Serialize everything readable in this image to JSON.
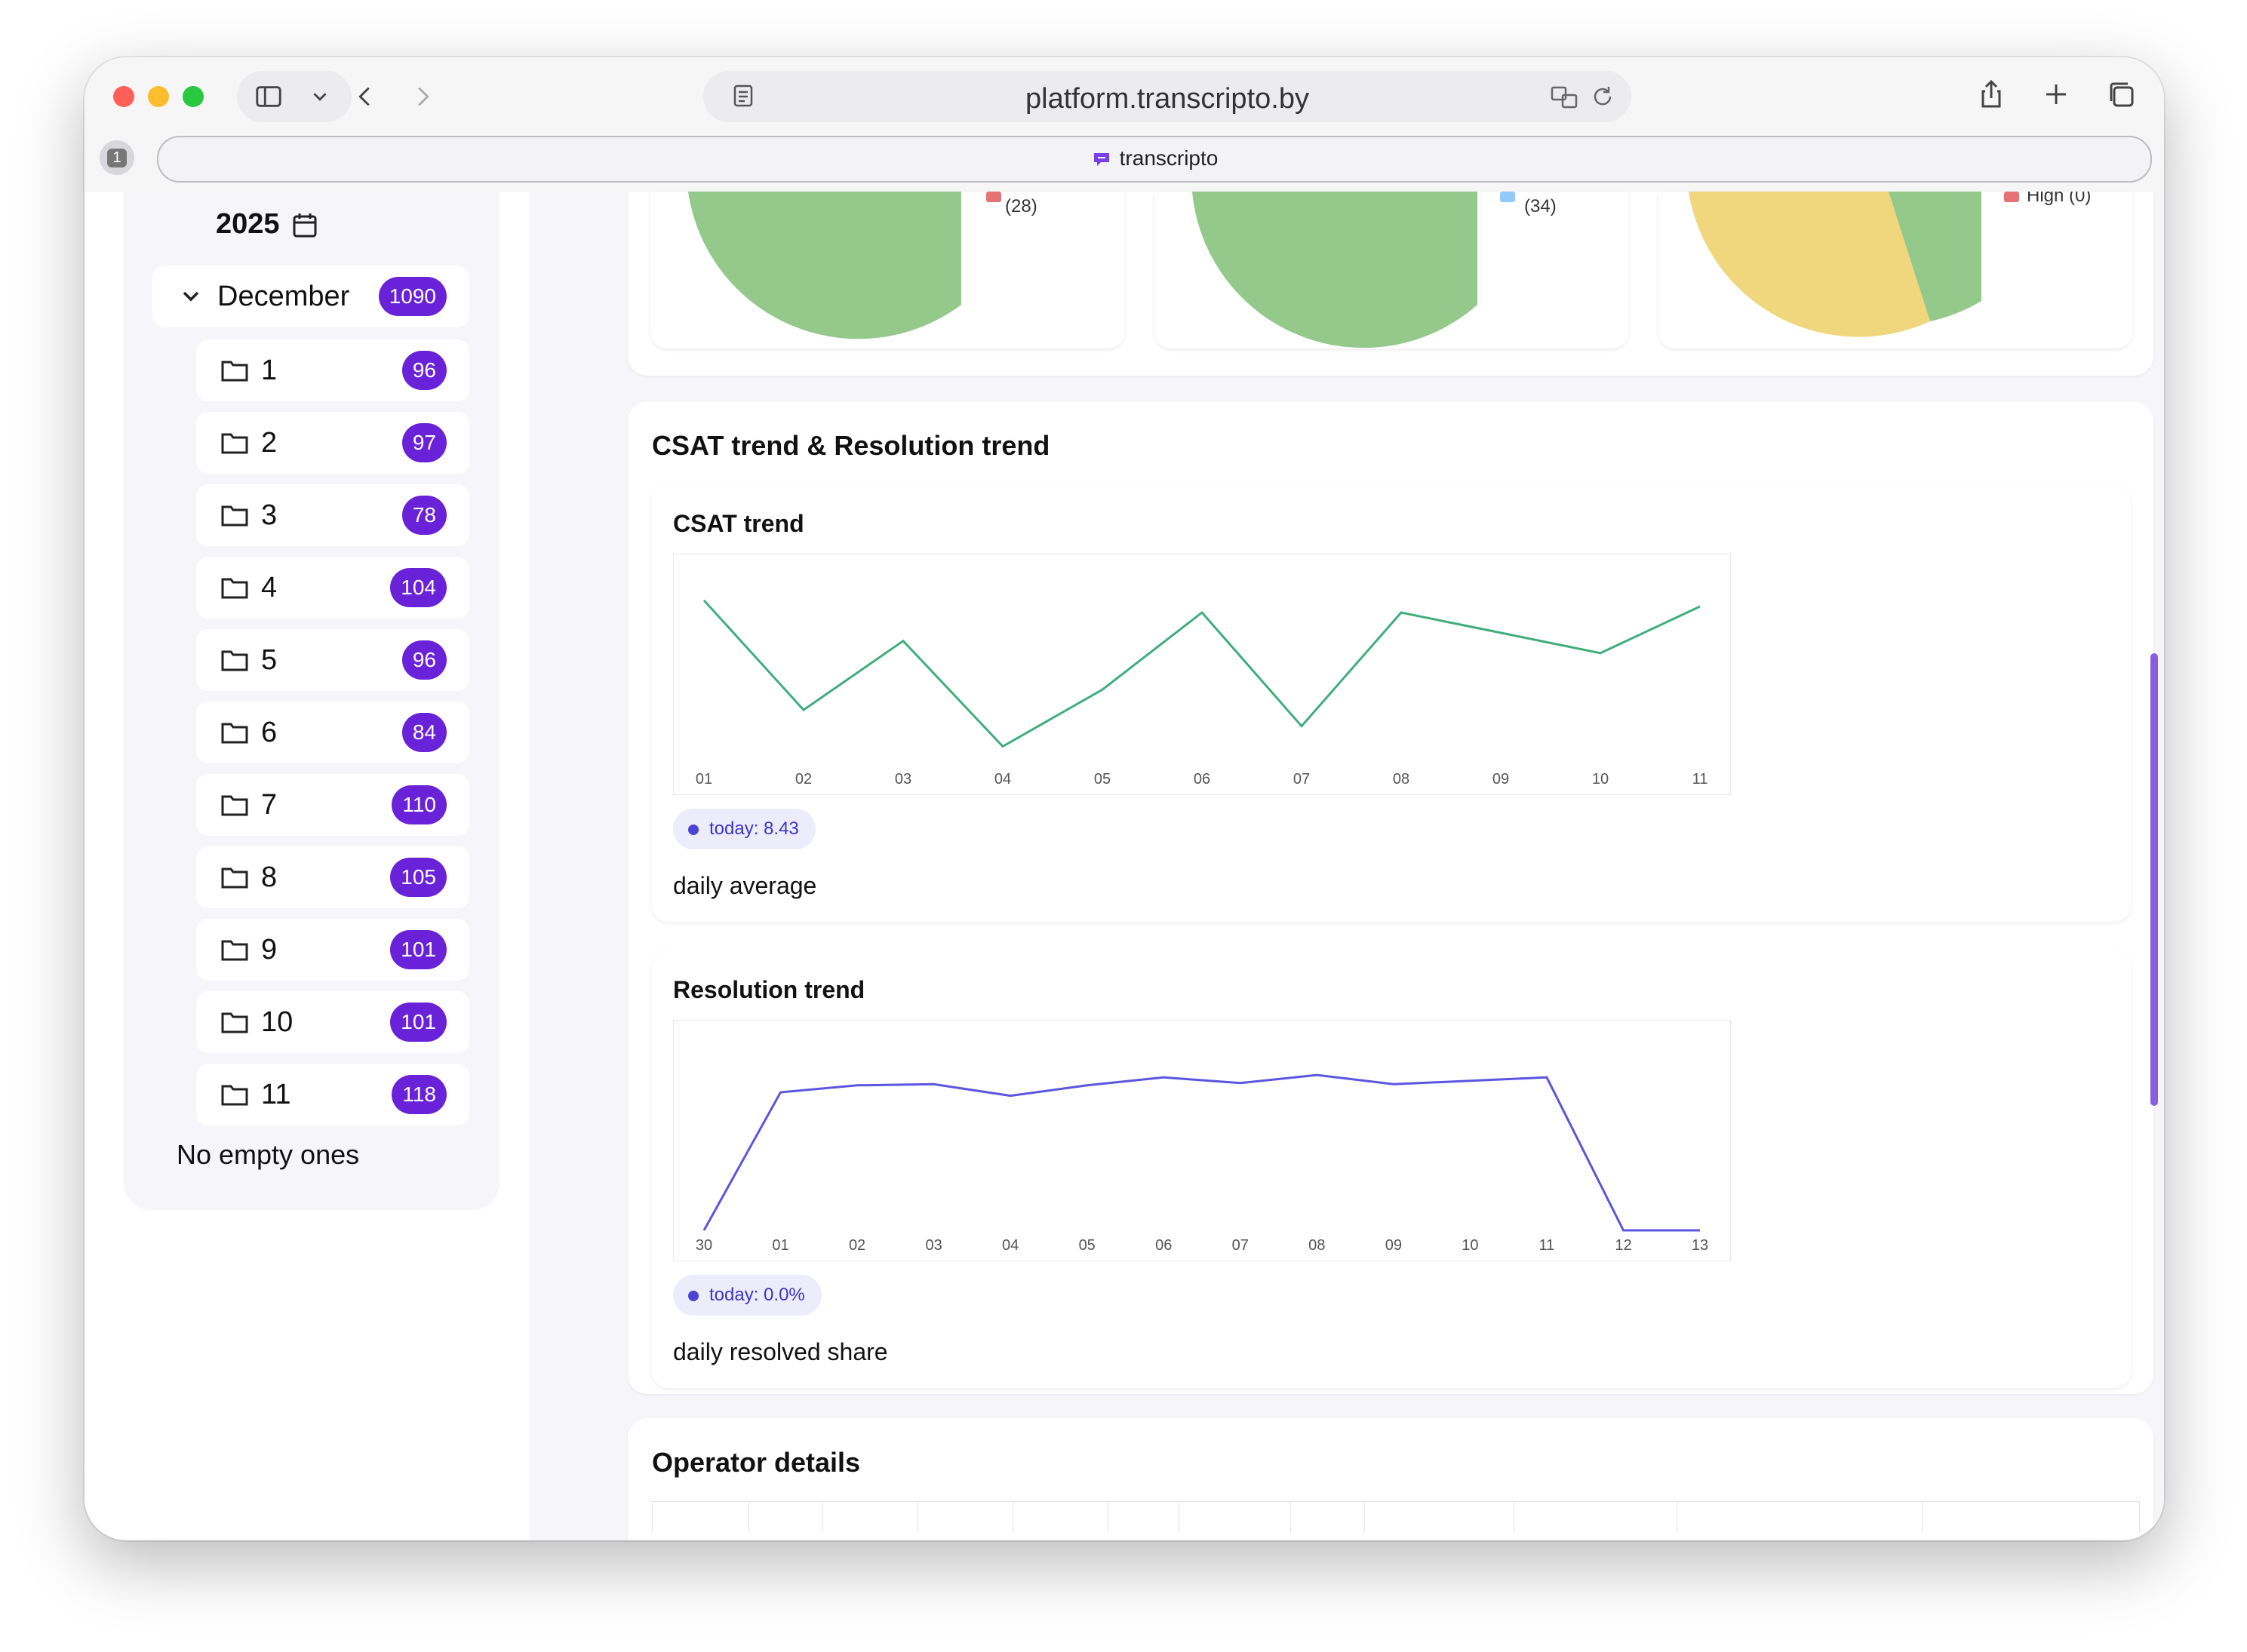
{
  "browser": {
    "url": "platform.transcripto.by",
    "tab_title": "transcripto",
    "tab_count": "1"
  },
  "sidebar": {
    "year": "2025",
    "month": {
      "label": "December",
      "count": "1090"
    },
    "days": [
      {
        "label": "1",
        "count": "96"
      },
      {
        "label": "2",
        "count": "97"
      },
      {
        "label": "3",
        "count": "78"
      },
      {
        "label": "4",
        "count": "104"
      },
      {
        "label": "5",
        "count": "96"
      },
      {
        "label": "6",
        "count": "84"
      },
      {
        "label": "7",
        "count": "110"
      },
      {
        "label": "8",
        "count": "105"
      },
      {
        "label": "9",
        "count": "101"
      },
      {
        "label": "10",
        "count": "101"
      },
      {
        "label": "11",
        "count": "118"
      }
    ],
    "empty_note": "No empty ones"
  },
  "pies": {
    "p1_legend": "(28)",
    "p2_legend": "(34)",
    "p3_legend": "High (0)"
  },
  "colors": {
    "accent": "#6a22d9",
    "csat_line": "#3fae7a",
    "resolution_line": "#5b55e0",
    "pie_green": "#94c98b",
    "pie_yellow": "#f0d67c",
    "legend_red": "#e57373",
    "legend_blue": "#90caf9"
  },
  "trends": {
    "section_title": "CSAT trend & Resolution trend",
    "csat": {
      "title": "CSAT trend",
      "pill": "today: 8.43",
      "caption": "daily average"
    },
    "resolution": {
      "title": "Resolution trend",
      "pill": "today: 0.0%",
      "caption": "daily resolved share"
    }
  },
  "operator_details": {
    "title": "Operator details"
  },
  "chart_data": [
    {
      "type": "line",
      "title": "CSAT trend",
      "x": [
        "01",
        "02",
        "03",
        "04",
        "05",
        "06",
        "07",
        "08",
        "09",
        "10",
        "11"
      ],
      "series": [
        {
          "values": [
            9.0,
            6.3,
            8.0,
            5.4,
            6.8,
            8.7,
            5.9,
            8.7,
            8.2,
            7.7,
            8.85
          ]
        }
      ],
      "ylim": [
        5.0,
        9.5
      ]
    },
    {
      "type": "line",
      "title": "Resolution trend",
      "x": [
        "30",
        "01",
        "02",
        "03",
        "04",
        "05",
        "06",
        "07",
        "08",
        "09",
        "10",
        "11",
        "12",
        "13"
      ],
      "series": [
        {
          "values": [
            0,
            60,
            63,
            63.5,
            58.5,
            63,
            66.5,
            64,
            67.5,
            63.5,
            65,
            66.5,
            0,
            0
          ]
        }
      ],
      "ylim": [
        0,
        80
      ]
    }
  ]
}
